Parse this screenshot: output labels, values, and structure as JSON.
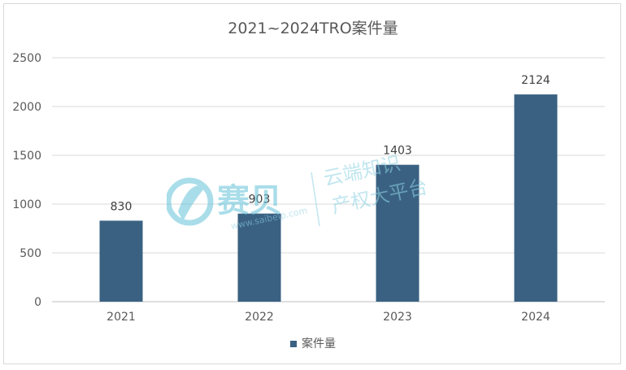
{
  "chart_data": {
    "type": "bar",
    "title": "2021~2024TRO案件量",
    "categories": [
      "2021",
      "2022",
      "2023",
      "2024"
    ],
    "series": [
      {
        "name": "案件量",
        "values": [
          830,
          903,
          1403,
          2124
        ],
        "color": "#3a6182"
      }
    ],
    "data_labels": [
      "830",
      "903",
      "1403",
      "2124"
    ],
    "ylim": [
      0,
      2500
    ],
    "yticks": [
      0,
      500,
      1000,
      1500,
      2000,
      2500
    ],
    "ytick_labels": [
      "0",
      "500",
      "1000",
      "1500",
      "2000",
      "2500"
    ],
    "grid": true,
    "legend_position": "bottom",
    "colors": {
      "bar": "#3a6182",
      "grid": "#d9d9d9",
      "axis_text": "#595959"
    }
  },
  "watermark": {
    "brand": "赛贝",
    "url": "www.saibeip.com",
    "slogan_line1": "云端知识",
    "slogan_line2": "产权大平台",
    "color": "#63c3d8"
  }
}
